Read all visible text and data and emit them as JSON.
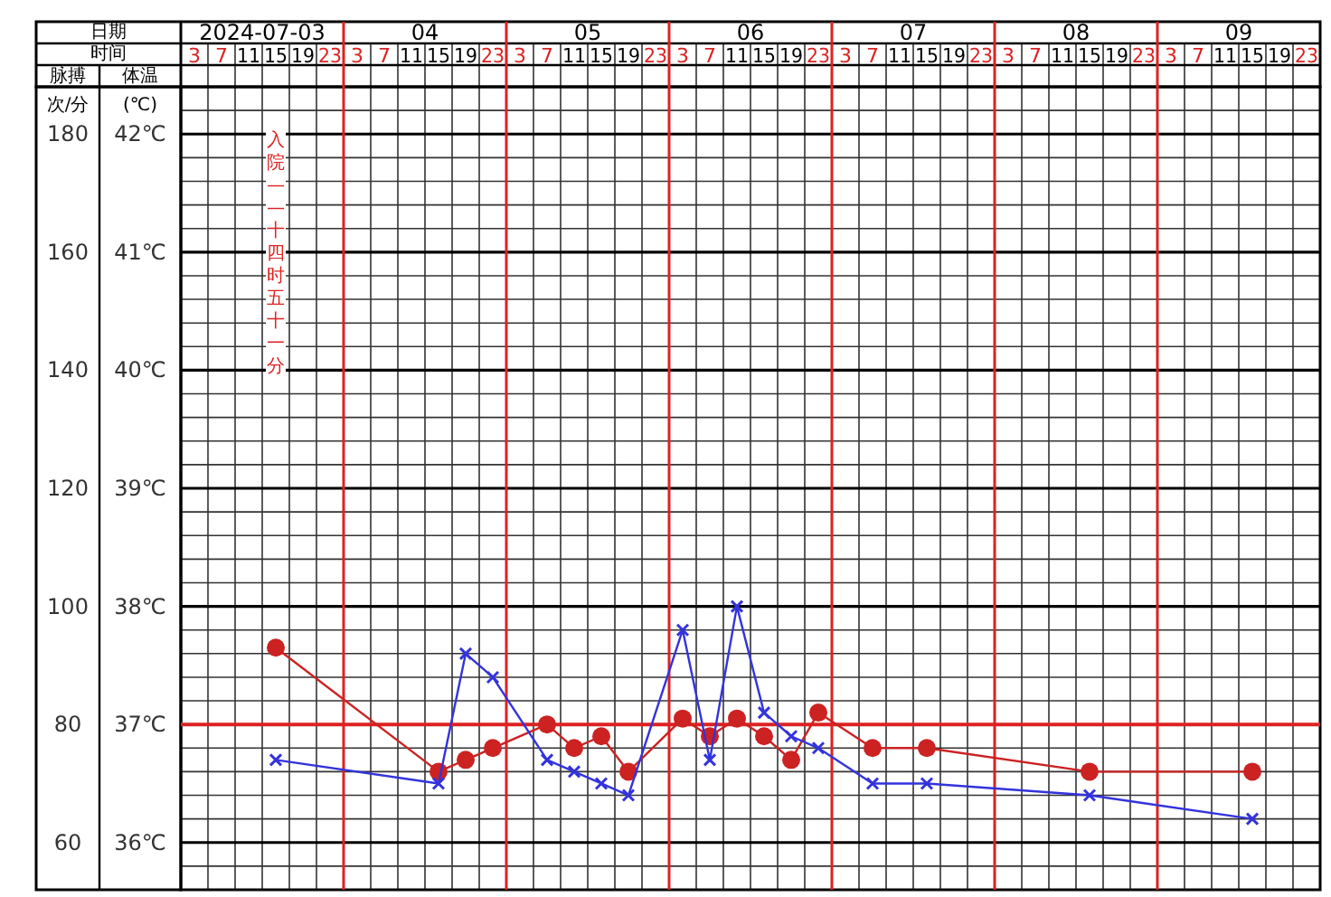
{
  "chart_data": {
    "type": "line",
    "xlabel": "时间",
    "ylabel": "脉搏次/分",
    "y2label": "体温(℃)",
    "annotations": [
      "日期",
      "2024-07-03",
      "04",
      "05",
      "06",
      "07",
      "08",
      "09",
      "入院——十四时五十一分"
    ],
    "categories": [
      "3",
      "7",
      "11",
      "15",
      "19",
      "23",
      "3",
      "7",
      "11",
      "15",
      "19",
      "23",
      "3",
      "7",
      "11",
      "15",
      "19",
      "23",
      "3",
      "7",
      "11",
      "15",
      "19",
      "23",
      "3",
      "7",
      "11",
      "15",
      "19",
      "23",
      "3",
      "7",
      "11",
      "15",
      "19",
      "23",
      "3",
      "7",
      "11",
      "15",
      "19",
      "23"
    ],
    "series": [
      {
        "color": "#cc2222",
        "marker": "circle",
        "values": [
          null,
          null,
          null,
          93,
          null,
          null,
          null,
          null,
          null,
          72,
          74,
          76,
          null,
          80,
          76,
          78,
          72,
          null,
          81,
          78,
          81,
          78,
          74,
          82,
          null,
          76,
          null,
          76,
          null,
          null,
          null,
          null,
          null,
          72,
          null,
          null,
          null,
          null,
          null,
          72,
          null,
          null
        ]
      },
      {
        "color": "#3333dd",
        "marker": "cross",
        "axis": "y2",
        "values": [
          null,
          null,
          null,
          36.7,
          null,
          null,
          null,
          null,
          null,
          36.5,
          37.6,
          37.4,
          null,
          36.7,
          36.6,
          36.5,
          36.4,
          null,
          37.8,
          36.7,
          38.0,
          37.1,
          36.9,
          36.8,
          null,
          36.5,
          null,
          36.5,
          null,
          null,
          null,
          null,
          null,
          36.4,
          null,
          null,
          null,
          null,
          null,
          36.2,
          null,
          null
        ]
      }
    ],
    "ylim": [
      52,
      188
    ],
    "yticks": [
      60,
      80,
      100,
      120,
      140,
      160,
      180
    ],
    "y2lim": [
      35.6,
      42.4
    ],
    "y2ticks": [
      {
        "value": 36,
        "label": "36℃"
      },
      {
        "value": 37,
        "label": "37℃"
      },
      {
        "value": 38,
        "label": "38℃"
      },
      {
        "value": 39,
        "label": "39℃"
      },
      {
        "value": 40,
        "label": "40℃"
      },
      {
        "value": 41,
        "label": "41℃"
      },
      {
        "value": 42,
        "label": "42℃"
      }
    ],
    "ref_lines": [
      {
        "axis": "y2",
        "value": 37,
        "color": "#dd2222"
      }
    ],
    "grid": true
  }
}
